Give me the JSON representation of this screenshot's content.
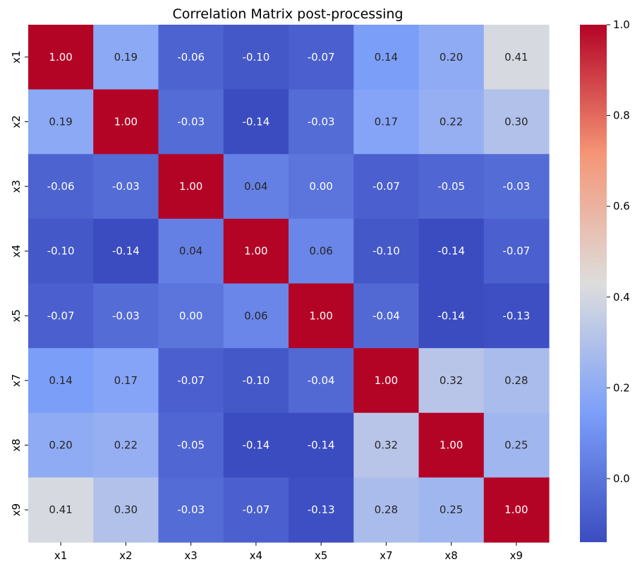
{
  "chart_data": {
    "type": "heatmap",
    "title": "Correlation Matrix post-processing",
    "xlabel": "",
    "ylabel": "",
    "x_labels": [
      "x1",
      "x2",
      "x3",
      "x4",
      "x5",
      "x7",
      "x8",
      "x9"
    ],
    "y_labels": [
      "x1",
      "x2",
      "x3",
      "x4",
      "x5",
      "x7",
      "x8",
      "x9"
    ],
    "values": [
      [
        1.0,
        0.19,
        -0.06,
        -0.1,
        -0.07,
        0.14,
        0.2,
        0.41
      ],
      [
        0.19,
        1.0,
        -0.03,
        -0.14,
        -0.03,
        0.17,
        0.22,
        0.3
      ],
      [
        -0.06,
        -0.03,
        1.0,
        0.04,
        0.0,
        -0.07,
        -0.05,
        -0.03
      ],
      [
        -0.1,
        -0.14,
        0.04,
        1.0,
        0.06,
        -0.1,
        -0.14,
        -0.07
      ],
      [
        -0.07,
        -0.03,
        0.0,
        0.06,
        1.0,
        -0.04,
        -0.14,
        -0.13
      ],
      [
        0.14,
        0.17,
        -0.07,
        -0.1,
        -0.04,
        1.0,
        0.32,
        0.28
      ],
      [
        0.2,
        0.22,
        -0.05,
        -0.14,
        -0.14,
        0.32,
        1.0,
        0.25
      ],
      [
        0.41,
        0.3,
        -0.03,
        -0.07,
        -0.13,
        0.28,
        0.25,
        1.0
      ]
    ],
    "annotation_format": "0.00",
    "colormap": "coolwarm",
    "vmin": -0.14,
    "vmax": 1.0,
    "colorbar_ticks": [
      0.0,
      0.2,
      0.4,
      0.6,
      0.8,
      1.0
    ],
    "colorbar_tick_labels": [
      "0.0",
      "0.2",
      "0.4",
      "0.6",
      "0.8",
      "1.0"
    ],
    "colorbar_placement": "right",
    "grid": false
  }
}
